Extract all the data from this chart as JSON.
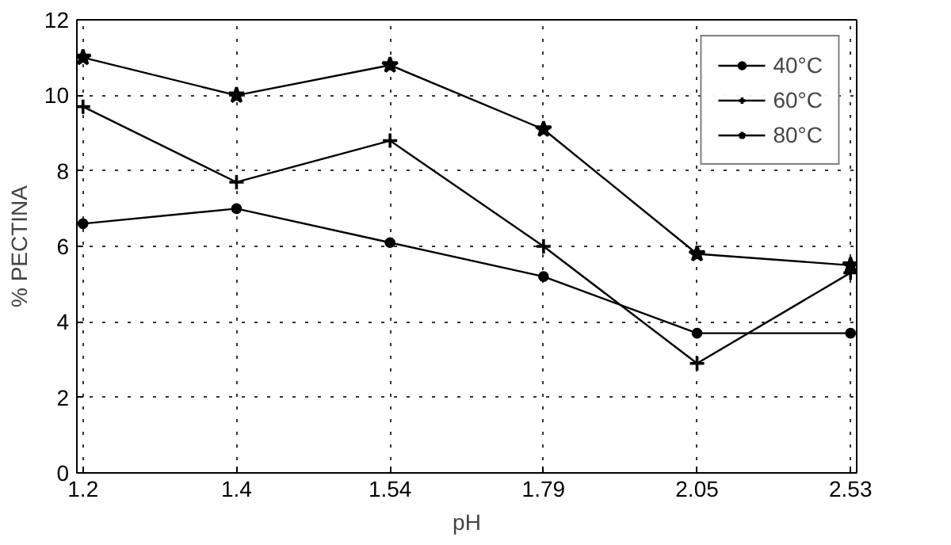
{
  "chart_data": {
    "type": "line",
    "xlabel": "pH",
    "ylabel": "% PECTINA",
    "categories": [
      "1.2",
      "1.4",
      "1.54",
      "1.79",
      "2.05",
      "2.53"
    ],
    "ylim": [
      0,
      12
    ],
    "yticks": [
      0,
      2,
      4,
      6,
      8,
      10,
      12
    ],
    "grid": true,
    "legend": "top right",
    "series": [
      {
        "name": "40°C",
        "color": "#000000",
        "marker": "circle",
        "values": [
          6.6,
          7.0,
          6.1,
          5.2,
          3.7,
          3.7
        ]
      },
      {
        "name": "60°C",
        "color": "#000000",
        "marker": "cross",
        "values": [
          9.7,
          7.7,
          8.8,
          6.0,
          2.9,
          5.3
        ]
      },
      {
        "name": "80°C",
        "color": "#000000",
        "marker": "star",
        "values": [
          11.0,
          10.0,
          10.8,
          9.1,
          5.8,
          5.5
        ]
      }
    ]
  }
}
